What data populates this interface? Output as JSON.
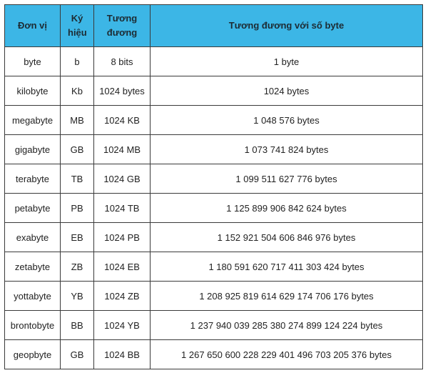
{
  "table": {
    "header": [
      "Đơn vị",
      "Ký hiệu",
      "Tương đương",
      "Tương đương với số byte"
    ],
    "rows": [
      [
        "byte",
        "b",
        "8 bits",
        "1 byte"
      ],
      [
        "kilobyte",
        "Kb",
        "1024 bytes",
        "1024 bytes"
      ],
      [
        "megabyte",
        "MB",
        "1024 KB",
        "1 048 576 bytes"
      ],
      [
        "gigabyte",
        "GB",
        "1024 MB",
        "1 073 741 824 bytes"
      ],
      [
        "terabyte",
        "TB",
        "1024 GB",
        "1 099 511 627 776 bytes"
      ],
      [
        "petabyte",
        "PB",
        "1024 TB",
        "1 125 899 906 842 624 bytes"
      ],
      [
        "exabyte",
        "EB",
        "1024 PB",
        "1 152 921 504 606 846 976 bytes"
      ],
      [
        "zetabyte",
        "ZB",
        "1024 EB",
        "1 180 591 620 717 411 303 424 bytes"
      ],
      [
        "yottabyte",
        "YB",
        "1024 ZB",
        "1 208 925 819 614 629 174 706 176 bytes"
      ],
      [
        "brontobyte",
        "BB",
        "1024 YB",
        "1 237 940 039 285 380 274 899 124 224 bytes"
      ],
      [
        "geopbyte",
        "GB",
        "1024 BB",
        "1 267 650 600 228 229 401 496 703 205 376 bytes"
      ]
    ]
  }
}
